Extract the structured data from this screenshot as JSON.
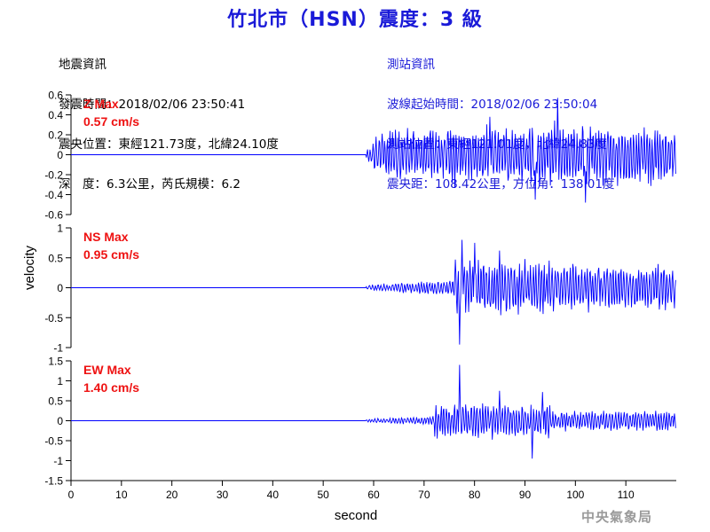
{
  "title": "竹北市（HSN）震度：3 級",
  "earthquake_info": {
    "heading": "地震資訊",
    "origin_time": "發震時間：2018/02/06 23:50:41",
    "epicenter": "震央位置：東經121.73度，北緯24.10度",
    "depth_magnitude": "深　度：6.3公里，芮氏規模：6.2"
  },
  "station_info": {
    "heading": "測站資訊",
    "wave_start_time": "波線起始時間：2018/02/06 23:50:04",
    "station_position": "測站位置：東經121.01度，北緯24.83度",
    "distance_azimuth": "震央距：108.42公里，方位角：138.01度"
  },
  "footer": "中央氣象局",
  "colors": {
    "title": "#1a1ad8",
    "trace": "#0000ff",
    "max_label": "#ee1111",
    "station_info": "#1a1ad8"
  },
  "chart_data": {
    "type": "line",
    "xlabel": "second",
    "ylabel": "velocity",
    "xlim": [
      0,
      120
    ],
    "xticks": [
      0,
      10,
      20,
      30,
      40,
      50,
      60,
      70,
      80,
      90,
      100,
      110
    ],
    "onset_seconds": 58.5,
    "panels": [
      {
        "component": "Z",
        "max_label": "Z Max",
        "max_value": "0.57 cm/s",
        "ylim": [
          -0.6,
          0.6
        ],
        "yticks": [
          0.6,
          0.4,
          0.2,
          0,
          -0.2,
          -0.4,
          -0.6
        ],
        "yticklabels": [
          "0.6",
          "0.4",
          "0.2",
          "0",
          "-0.2",
          "-0.4",
          "-0.6"
        ],
        "peaks": [
          {
            "x": 96.5,
            "y": 0.57
          },
          {
            "x": 102.0,
            "y": -0.48
          },
          {
            "x": 92.0,
            "y": -0.45
          },
          {
            "x": 83.0,
            "y": 0.38
          }
        ]
      },
      {
        "component": "NS",
        "max_label": "NS Max",
        "max_value": "0.95 cm/s",
        "ylim": [
          -1,
          1
        ],
        "yticks": [
          1,
          0.5,
          0,
          -0.5,
          -1
        ],
        "yticklabels": [
          "1",
          "0.5",
          "0",
          "-0.5",
          "-1"
        ],
        "peaks": [
          {
            "x": 77.0,
            "y": -0.95
          },
          {
            "x": 77.5,
            "y": 0.8
          },
          {
            "x": 80.0,
            "y": 0.75
          },
          {
            "x": 85.0,
            "y": 0.62
          }
        ]
      },
      {
        "component": "EW",
        "max_label": "EW Max",
        "max_value": "1.40 cm/s",
        "ylim": [
          -1.5,
          1.5
        ],
        "yticks": [
          1.5,
          1,
          0.5,
          0,
          -0.5,
          -1,
          -1.5
        ],
        "yticklabels": [
          "1.5",
          "1",
          "0.5",
          "0",
          "-0.5",
          "-1",
          "-1.5"
        ],
        "peaks": [
          {
            "x": 77.0,
            "y": 1.4
          },
          {
            "x": 91.5,
            "y": -0.95
          },
          {
            "x": 85.0,
            "y": 0.75
          },
          {
            "x": 93.5,
            "y": 0.72
          }
        ]
      }
    ]
  }
}
